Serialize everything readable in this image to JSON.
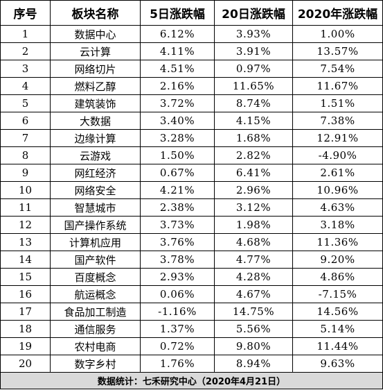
{
  "headers": [
    "序号",
    "板块名称",
    "5日涨跌幅",
    "20日涨跌幅",
    "2020年涨跌幅"
  ],
  "rows": [
    {
      "no": "1",
      "name": "数据中心",
      "d5": "6.12%",
      "d20": "3.93%",
      "ytd": "1.00%"
    },
    {
      "no": "2",
      "name": "云计算",
      "d5": "4.11%",
      "d20": "3.91%",
      "ytd": "13.57%"
    },
    {
      "no": "3",
      "name": "网络切片",
      "d5": "4.51%",
      "d20": "0.97%",
      "ytd": "7.54%"
    },
    {
      "no": "4",
      "name": "燃料乙醇",
      "d5": "2.16%",
      "d20": "11.65%",
      "ytd": "11.67%"
    },
    {
      "no": "5",
      "name": "建筑装饰",
      "d5": "3.72%",
      "d20": "8.74%",
      "ytd": "1.51%"
    },
    {
      "no": "6",
      "name": "大数据",
      "d5": "3.40%",
      "d20": "4.15%",
      "ytd": "7.38%"
    },
    {
      "no": "7",
      "name": "边缘计算",
      "d5": "3.28%",
      "d20": "1.68%",
      "ytd": "12.91%"
    },
    {
      "no": "8",
      "name": "云游戏",
      "d5": "1.50%",
      "d20": "2.82%",
      "ytd": "-4.90%"
    },
    {
      "no": "9",
      "name": "网红经济",
      "d5": "0.67%",
      "d20": "6.41%",
      "ytd": "2.61%"
    },
    {
      "no": "10",
      "name": "网络安全",
      "d5": "4.21%",
      "d20": "2.96%",
      "ytd": "10.96%"
    },
    {
      "no": "11",
      "name": "智慧城市",
      "d5": "2.38%",
      "d20": "3.12%",
      "ytd": "4.63%"
    },
    {
      "no": "12",
      "name": "国产操作系统",
      "d5": "3.73%",
      "d20": "1.98%",
      "ytd": "3.18%"
    },
    {
      "no": "13",
      "name": "计算机应用",
      "d5": "3.76%",
      "d20": "4.68%",
      "ytd": "11.36%"
    },
    {
      "no": "14",
      "name": "国产软件",
      "d5": "3.78%",
      "d20": "4.77%",
      "ytd": "9.20%"
    },
    {
      "no": "15",
      "name": "百度概念",
      "d5": "2.93%",
      "d20": "4.28%",
      "ytd": "4.86%"
    },
    {
      "no": "16",
      "name": "航运概念",
      "d5": "0.06%",
      "d20": "4.67%",
      "ytd": "-7.15%"
    },
    {
      "no": "17",
      "name": "食品加工制造",
      "d5": "-1.16%",
      "d20": "14.75%",
      "ytd": "14.56%"
    },
    {
      "no": "18",
      "name": "通信服务",
      "d5": "1.37%",
      "d20": "5.56%",
      "ytd": "5.14%"
    },
    {
      "no": "19",
      "name": "农村电商",
      "d5": "0.72%",
      "d20": "9.80%",
      "ytd": "11.44%"
    },
    {
      "no": "20",
      "name": "数字乡村",
      "d5": "1.76%",
      "d20": "8.94%",
      "ytd": "9.63%"
    }
  ],
  "footer": "数据统计：七禾研究中心（2020年4月21日）"
}
